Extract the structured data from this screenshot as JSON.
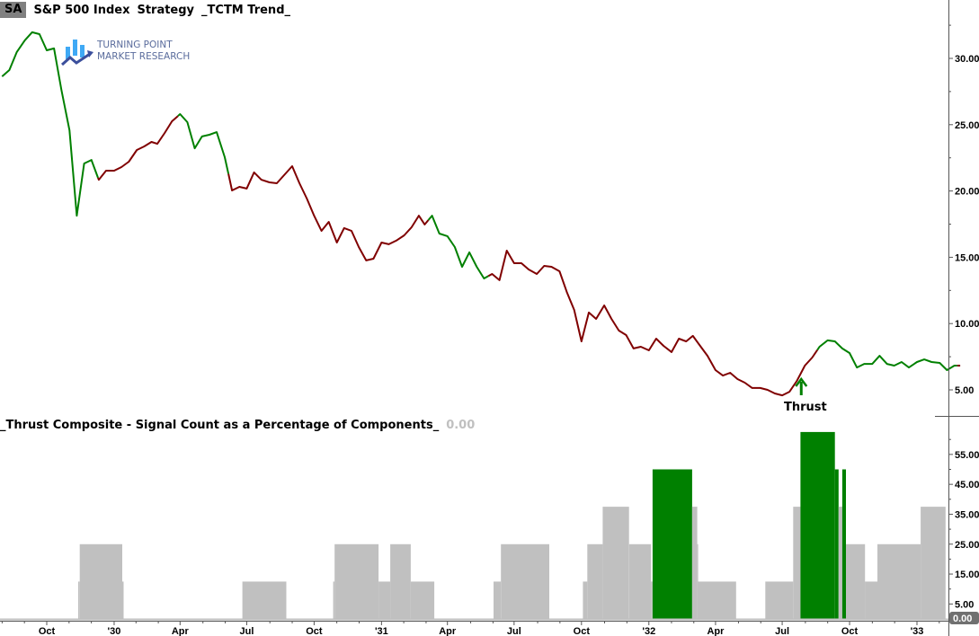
{
  "header": {
    "symbol": "SA",
    "title": "S&P 500 Index",
    "strategy": "Strategy",
    "indicator": "_TCTM Trend_"
  },
  "logo": {
    "line1": "TURNING POINT",
    "line2": "MARKET RESEARCH"
  },
  "lower_panel": {
    "title": "_Thrust Composite - Signal Count as a Percentage of Components_",
    "current_value": "0.00"
  },
  "annotation": {
    "label": "Thrust",
    "date": "1932-07-27",
    "icon": "arrow-up-icon"
  },
  "colors": {
    "bullish": "#008000",
    "bearish": "#800000",
    "signal_bar": "#008000",
    "count_bar": "#c0c0c0"
  },
  "chart_data": [
    {
      "type": "line",
      "title": "S&P 500 Index",
      "y_axis": {
        "position": "right",
        "range": [
          3.0,
          34.5
        ],
        "ticks": [
          "5.00",
          "10.00",
          "15.00",
          "20.00",
          "25.00",
          "30.00"
        ]
      },
      "x_axis": {
        "ticks": [
          "Oct",
          "'30",
          "Apr",
          "Jul",
          "Oct",
          "'31",
          "Apr",
          "Jul",
          "Oct",
          "'32",
          "Apr",
          "Jul",
          "Oct",
          "'33"
        ],
        "tick_dates": [
          "1929-10-01",
          "1930-01-01",
          "1930-04-01",
          "1930-07-01",
          "1930-10-01",
          "1931-01-01",
          "1931-04-01",
          "1931-07-01",
          "1931-10-01",
          "1932-01-01",
          "1932-04-01",
          "1932-07-01",
          "1932-10-01",
          "1933-01-01"
        ]
      },
      "regimes": [
        {
          "start": "1929-08-01",
          "end": "1929-12-10",
          "trend": "bullish"
        },
        {
          "start": "1929-12-10",
          "end": "1930-03-29",
          "trend": "bearish"
        },
        {
          "start": "1930-03-29",
          "end": "1930-06-06",
          "trend": "bullish"
        },
        {
          "start": "1930-06-06",
          "end": "1931-03-06",
          "trend": "bearish"
        },
        {
          "start": "1931-03-06",
          "end": "1931-05-27",
          "trend": "bullish"
        },
        {
          "start": "1931-05-27",
          "end": "1932-08-18",
          "trend": "bearish"
        },
        {
          "start": "1932-08-18",
          "end": "1933-02-25",
          "trend": "bullish"
        },
        {
          "start": "1933-02-25",
          "end": "1933-03-11",
          "trend": "bearish"
        }
      ],
      "points": [
        [
          "1929-08-01",
          28.64
        ],
        [
          "1929-08-11",
          29.12
        ],
        [
          "1929-08-21",
          30.47
        ],
        [
          "1929-09-01",
          31.36
        ],
        [
          "1929-09-11",
          31.97
        ],
        [
          "1929-09-21",
          31.83
        ],
        [
          "1929-10-01",
          30.61
        ],
        [
          "1929-10-11",
          30.75
        ],
        [
          "1929-10-21",
          27.63
        ],
        [
          "1929-11-01",
          24.58
        ],
        [
          "1929-11-11",
          18.14
        ],
        [
          "1929-11-21",
          22.07
        ],
        [
          "1929-12-01",
          22.34
        ],
        [
          "1929-12-11",
          20.85
        ],
        [
          "1929-12-21",
          21.53
        ],
        [
          "1930-01-01",
          21.53
        ],
        [
          "1930-01-11",
          21.8
        ],
        [
          "1930-01-21",
          22.21
        ],
        [
          "1930-02-01",
          23.09
        ],
        [
          "1930-02-11",
          23.36
        ],
        [
          "1930-02-21",
          23.7
        ],
        [
          "1930-03-01",
          23.56
        ],
        [
          "1930-03-11",
          24.38
        ],
        [
          "1930-03-21",
          25.26
        ],
        [
          "1930-04-01",
          25.8
        ],
        [
          "1930-04-11",
          25.19
        ],
        [
          "1930-04-21",
          23.22
        ],
        [
          "1930-05-01",
          24.11
        ],
        [
          "1930-05-11",
          24.24
        ],
        [
          "1930-05-21",
          24.44
        ],
        [
          "1930-06-01",
          22.55
        ],
        [
          "1930-06-11",
          20.04
        ],
        [
          "1930-06-21",
          20.31
        ],
        [
          "1930-07-01",
          20.18
        ],
        [
          "1930-07-11",
          21.4
        ],
        [
          "1930-07-21",
          20.85
        ],
        [
          "1930-08-01",
          20.65
        ],
        [
          "1930-08-11",
          20.58
        ],
        [
          "1930-08-21",
          21.19
        ],
        [
          "1930-09-01",
          21.87
        ],
        [
          "1930-09-11",
          20.58
        ],
        [
          "1930-09-21",
          19.43
        ],
        [
          "1930-10-01",
          18.14
        ],
        [
          "1930-10-11",
          16.99
        ],
        [
          "1930-10-21",
          17.67
        ],
        [
          "1930-11-01",
          16.11
        ],
        [
          "1930-11-11",
          17.2
        ],
        [
          "1930-11-21",
          16.99
        ],
        [
          "1930-12-01",
          15.77
        ],
        [
          "1930-12-11",
          14.76
        ],
        [
          "1930-12-21",
          14.89
        ],
        [
          "1931-01-01",
          16.11
        ],
        [
          "1931-01-11",
          15.98
        ],
        [
          "1931-01-21",
          16.25
        ],
        [
          "1931-02-01",
          16.65
        ],
        [
          "1931-02-11",
          17.26
        ],
        [
          "1931-02-21",
          18.14
        ],
        [
          "1931-03-01",
          17.47
        ],
        [
          "1931-03-11",
          18.14
        ],
        [
          "1931-03-21",
          16.79
        ],
        [
          "1931-04-01",
          16.59
        ],
        [
          "1931-04-11",
          15.77
        ],
        [
          "1931-04-21",
          14.28
        ],
        [
          "1931-05-01",
          15.37
        ],
        [
          "1931-05-11",
          14.28
        ],
        [
          "1931-05-21",
          13.4
        ],
        [
          "1931-06-01",
          13.74
        ],
        [
          "1931-06-11",
          13.27
        ],
        [
          "1931-06-21",
          15.5
        ],
        [
          "1931-07-01",
          14.55
        ],
        [
          "1931-07-11",
          14.55
        ],
        [
          "1931-07-21",
          14.08
        ],
        [
          "1931-08-01",
          13.74
        ],
        [
          "1931-08-11",
          14.35
        ],
        [
          "1931-08-21",
          14.28
        ],
        [
          "1931-09-01",
          13.94
        ],
        [
          "1931-09-11",
          12.38
        ],
        [
          "1931-09-21",
          11.03
        ],
        [
          "1931-10-01",
          8.66
        ],
        [
          "1931-10-11",
          10.83
        ],
        [
          "1931-10-21",
          10.35
        ],
        [
          "1931-11-01",
          11.37
        ],
        [
          "1931-11-11",
          10.35
        ],
        [
          "1931-11-21",
          9.47
        ],
        [
          "1931-12-01",
          9.13
        ],
        [
          "1931-12-11",
          8.12
        ],
        [
          "1931-12-21",
          8.25
        ],
        [
          "1932-01-01",
          7.98
        ],
        [
          "1932-01-11",
          8.86
        ],
        [
          "1932-01-21",
          8.32
        ],
        [
          "1932-02-01",
          7.85
        ],
        [
          "1932-02-11",
          8.86
        ],
        [
          "1932-02-21",
          8.66
        ],
        [
          "1932-03-01",
          9.07
        ],
        [
          "1932-03-11",
          8.32
        ],
        [
          "1932-03-21",
          7.57
        ],
        [
          "1932-04-01",
          6.49
        ],
        [
          "1932-04-11",
          6.08
        ],
        [
          "1932-04-21",
          6.29
        ],
        [
          "1932-05-01",
          5.81
        ],
        [
          "1932-05-11",
          5.54
        ],
        [
          "1932-05-21",
          5.14
        ],
        [
          "1932-06-01",
          5.14
        ],
        [
          "1932-06-11",
          5.0
        ],
        [
          "1932-06-21",
          4.73
        ],
        [
          "1932-07-01",
          4.59
        ],
        [
          "1932-07-11",
          4.86
        ],
        [
          "1932-07-21",
          5.68
        ],
        [
          "1932-08-01",
          6.83
        ],
        [
          "1932-08-11",
          7.44
        ],
        [
          "1932-08-21",
          8.25
        ],
        [
          "1932-09-01",
          8.73
        ],
        [
          "1932-09-11",
          8.66
        ],
        [
          "1932-09-21",
          8.12
        ],
        [
          "1932-10-01",
          7.78
        ],
        [
          "1932-10-11",
          6.69
        ],
        [
          "1932-10-21",
          6.96
        ],
        [
          "1932-11-01",
          6.96
        ],
        [
          "1932-11-11",
          7.57
        ],
        [
          "1932-11-21",
          6.96
        ],
        [
          "1932-12-01",
          6.83
        ],
        [
          "1932-12-11",
          7.1
        ],
        [
          "1932-12-21",
          6.69
        ],
        [
          "1933-01-01",
          7.1
        ],
        [
          "1933-01-11",
          7.3
        ],
        [
          "1933-01-21",
          7.1
        ],
        [
          "1933-02-01",
          7.03
        ],
        [
          "1933-02-11",
          6.49
        ],
        [
          "1933-02-21",
          6.83
        ],
        [
          "1933-03-01",
          6.83
        ]
      ]
    },
    {
      "type": "bar",
      "title": "_Thrust Composite - Signal Count as a Percentage of Components_",
      "y_axis": {
        "position": "right",
        "range": [
          0,
          65
        ],
        "ticks": [
          "5.00",
          "15.00",
          "25.00",
          "35.00",
          "45.00",
          "55.00"
        ],
        "last_value": "0.00"
      },
      "steps": [
        {
          "start": "1929-11-13",
          "end": "1929-11-15",
          "value": 12.5,
          "signal": false
        },
        {
          "start": "1929-11-15",
          "end": "1930-01-12",
          "value": 25,
          "signal": false
        },
        {
          "start": "1930-01-12",
          "end": "1930-01-14",
          "value": 12.5,
          "signal": false
        },
        {
          "start": "1930-06-25",
          "end": "1930-08-24",
          "value": 12.5,
          "signal": false
        },
        {
          "start": "1930-10-27",
          "end": "1930-10-29",
          "value": 12.5,
          "signal": false
        },
        {
          "start": "1930-10-29",
          "end": "1930-12-28",
          "value": 25,
          "signal": false
        },
        {
          "start": "1930-12-28",
          "end": "1931-01-13",
          "value": 12.5,
          "signal": false
        },
        {
          "start": "1931-01-13",
          "end": "1931-02-10",
          "value": 25,
          "signal": false
        },
        {
          "start": "1931-02-10",
          "end": "1931-03-14",
          "value": 12.5,
          "signal": false
        },
        {
          "start": "1931-06-03",
          "end": "1931-06-13",
          "value": 12.5,
          "signal": false
        },
        {
          "start": "1931-06-13",
          "end": "1931-08-18",
          "value": 25,
          "signal": false
        },
        {
          "start": "1931-10-03",
          "end": "1931-10-09",
          "value": 12.5,
          "signal": false
        },
        {
          "start": "1931-10-09",
          "end": "1931-10-30",
          "value": 25,
          "signal": false
        },
        {
          "start": "1931-10-30",
          "end": "1931-12-05",
          "value": 37.5,
          "signal": false
        },
        {
          "start": "1931-12-05",
          "end": "1932-01-04",
          "value": 25,
          "signal": false
        },
        {
          "start": "1932-01-04",
          "end": "1932-01-06",
          "value": 12.5,
          "signal": false
        },
        {
          "start": "1932-01-06",
          "end": "1932-02-29",
          "value": 50,
          "signal": true
        },
        {
          "start": "1932-02-29",
          "end": "1932-03-07",
          "value": 37.5,
          "signal": false
        },
        {
          "start": "1932-03-07",
          "end": "1932-03-08",
          "value": 25,
          "signal": false
        },
        {
          "start": "1932-03-08",
          "end": "1932-04-29",
          "value": 12.5,
          "signal": false
        },
        {
          "start": "1932-06-08",
          "end": "1932-07-16",
          "value": 12.5,
          "signal": false
        },
        {
          "start": "1932-07-16",
          "end": "1932-07-26",
          "value": 37.5,
          "signal": false
        },
        {
          "start": "1932-07-26",
          "end": "1932-09-11",
          "value": 62.5,
          "signal": true
        },
        {
          "start": "1932-09-11",
          "end": "1932-09-16",
          "value": 50,
          "signal": true
        },
        {
          "start": "1932-09-16",
          "end": "1932-09-21",
          "value": 37.5,
          "signal": false
        },
        {
          "start": "1932-09-21",
          "end": "1932-09-26",
          "value": 50,
          "signal": true
        },
        {
          "start": "1932-09-26",
          "end": "1932-10-22",
          "value": 25,
          "signal": false
        },
        {
          "start": "1932-10-22",
          "end": "1932-11-08",
          "value": 12.5,
          "signal": false
        },
        {
          "start": "1932-11-08",
          "end": "1933-01-06",
          "value": 25,
          "signal": false
        },
        {
          "start": "1933-01-06",
          "end": "1933-02-09",
          "value": 37.5,
          "signal": false
        }
      ]
    }
  ]
}
